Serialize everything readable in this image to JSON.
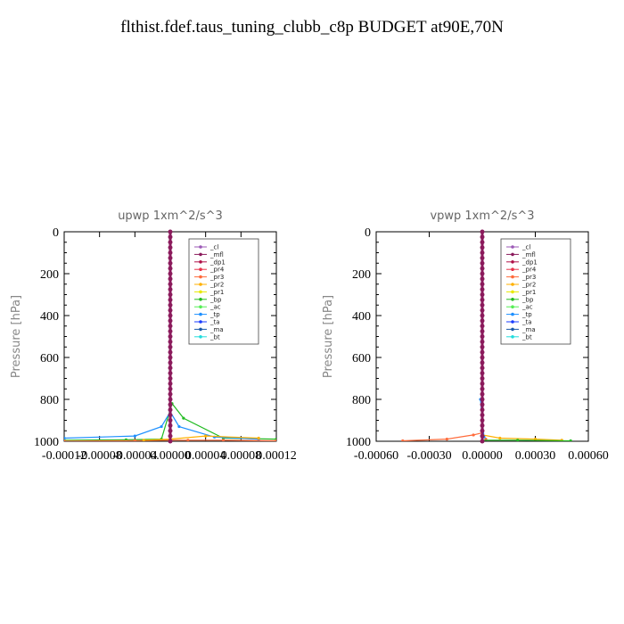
{
  "title": "flthist.fdef.taus_tuning_clubb_c8p  BUDGET at90E,70N",
  "legend_entries": [
    "_cl",
    "_mfl",
    "_dp1",
    "_pr4",
    "_pr3",
    "_pr2",
    "_pr1",
    "_bp",
    "_ac",
    "_tp",
    "_ta",
    "_ma",
    "_bt"
  ],
  "colors": {
    "_cl": "#9b59b6",
    "_mfl": "#8b1a5c",
    "_dp1": "#b0124a",
    "_pr4": "#e8324a",
    "_pr3": "#ff6a3a",
    "_pr2": "#ffb000",
    "_pr1": "#e8e800",
    "_bp": "#22bb22",
    "_ac": "#55ee55",
    "_tp": "#1e90ff",
    "_ta": "#1a3cff",
    "_ma": "#1a5aa8",
    "_bt": "#22dddd"
  },
  "chart_data": [
    {
      "type": "line",
      "title": "upwp   1xm^2/s^3",
      "ylabel": "Pressure [hPa]",
      "xlim": [
        -0.00012,
        0.00012
      ],
      "ylim": [
        1000,
        0
      ],
      "x_ticks": [
        "-0.00012",
        "-0.00008",
        "-0.00004",
        "0.00000",
        "0.00004",
        "0.00008",
        "0.00012"
      ],
      "y_ticks": [
        "0",
        "200",
        "400",
        "600",
        "800",
        "1000"
      ],
      "series": [
        {
          "name": "_bp",
          "x": [
            -0.00012,
            -5e-05,
            -1e-05,
            2e-06,
            1.5e-05,
            6e-05,
            0.00012
          ],
          "y": [
            995,
            993,
            990,
            820,
            890,
            985,
            990
          ]
        },
        {
          "name": "_tp",
          "x": [
            -0.00012,
            -4e-05,
            -1e-05,
            0,
            1e-05,
            5e-05,
            0.0001
          ],
          "y": [
            985,
            975,
            930,
            860,
            930,
            980,
            990
          ]
        },
        {
          "name": "_pr3",
          "x": [
            -0.00012,
            -4e-05,
            0,
            2e-05,
            6e-05,
            0.00012
          ],
          "y": [
            999,
            997,
            995,
            995,
            995,
            998
          ]
        },
        {
          "name": "_pr2",
          "x": [
            -3e-05,
            0,
            4e-05,
            0.0001
          ],
          "y": [
            995,
            990,
            975,
            985
          ]
        },
        {
          "name": "_mfl",
          "x": [
            0,
            0,
            0,
            0,
            0,
            0,
            0
          ],
          "y": [
            0,
            200,
            400,
            600,
            800,
            950,
            1000
          ]
        }
      ]
    },
    {
      "type": "line",
      "title": "vpwp   1xm^2/s^3",
      "ylabel": "Pressure [hPa]",
      "xlim": [
        -0.0006,
        0.0006
      ],
      "ylim": [
        1000,
        0
      ],
      "x_ticks": [
        "-0.00060",
        "-0.00030",
        "0.00000",
        "0.00030",
        "0.00060"
      ],
      "y_ticks": [
        "0",
        "200",
        "400",
        "600",
        "800",
        "1000"
      ],
      "series": [
        {
          "name": "_pr3",
          "x": [
            -0.00045,
            -0.0002,
            -5e-05,
            0,
            2e-05
          ],
          "y": [
            998,
            990,
            970,
            960,
            990
          ]
        },
        {
          "name": "_pr2",
          "x": [
            0,
            0.0001,
            0.0003,
            0.00045
          ],
          "y": [
            970,
            985,
            990,
            995
          ]
        },
        {
          "name": "_bp",
          "x": [
            0,
            0.0002,
            0.0005
          ],
          "y": [
            995,
            995,
            998
          ]
        },
        {
          "name": "_tp",
          "x": [
            -1e-05,
            0,
            1e-05
          ],
          "y": [
            800,
            900,
            980
          ]
        },
        {
          "name": "_mfl",
          "x": [
            0,
            0,
            0,
            0,
            0,
            0,
            0
          ],
          "y": [
            0,
            200,
            400,
            600,
            800,
            950,
            1000
          ]
        }
      ]
    }
  ]
}
